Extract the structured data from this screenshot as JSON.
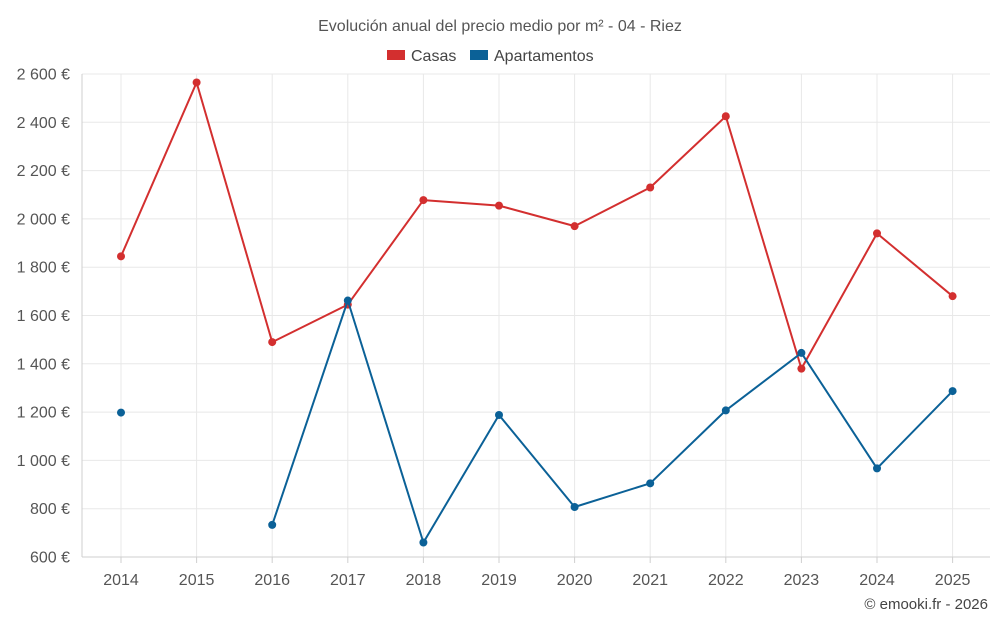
{
  "chart_data": {
    "type": "line",
    "title": "Evolución anual del precio medio por m² - 04 - Riez",
    "categories": [
      "2014",
      "2015",
      "2016",
      "2017",
      "2018",
      "2019",
      "2020",
      "2021",
      "2022",
      "2023",
      "2024",
      "2025"
    ],
    "series": [
      {
        "name": "Casas",
        "color": "#d32f2f",
        "values": [
          1845,
          2565,
          1490,
          1645,
          2078,
          2055,
          1970,
          2130,
          2425,
          1380,
          1940,
          1680
        ]
      },
      {
        "name": "Apartamentos",
        "color": "#0b6197",
        "values": [
          1198,
          null,
          733,
          1662,
          660,
          1188,
          807,
          905,
          1207,
          1445,
          967,
          1287
        ]
      }
    ],
    "ylim": [
      600,
      2600
    ],
    "yticks": [
      600,
      800,
      1000,
      1200,
      1400,
      1600,
      1800,
      2000,
      2200,
      2400,
      2600
    ],
    "ytick_labels": [
      "600 €",
      "800 €",
      "1 000 €",
      "1 200 €",
      "1 400 €",
      "1 600 €",
      "1 800 €",
      "2 000 €",
      "2 200 €",
      "2 400 €",
      "2 600 €"
    ],
    "grid": true,
    "legend_position": "top-center",
    "credit": "© emooki.fr - 2026"
  }
}
